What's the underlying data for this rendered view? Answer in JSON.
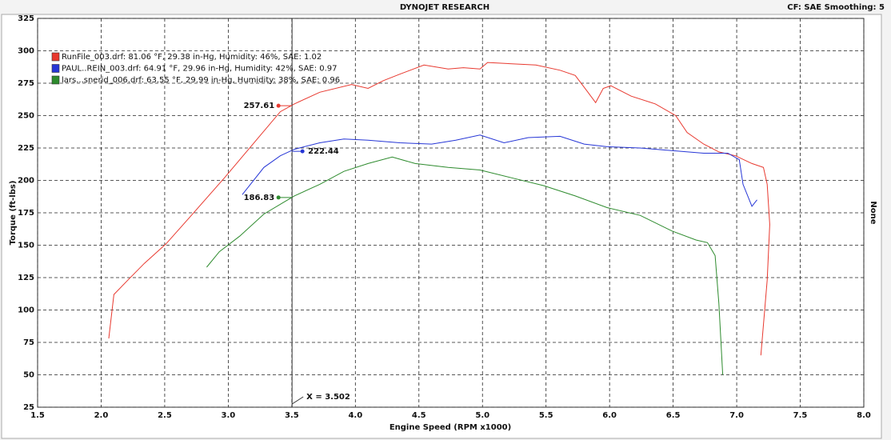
{
  "chart_data": {
    "type": "line",
    "title": "DYNOJET RESEARCH",
    "subtitle": "CF: SAE  Smoothing: 5",
    "side_label": "None",
    "xlabel": "Engine Speed (RPM x1000)",
    "ylabel": "Torque (ft-lbs)",
    "xlim": [
      1.5,
      8.0
    ],
    "ylim": [
      25,
      325
    ],
    "xticks": [
      1.5,
      {
        "value": 2,
        "label": "2.0"
      },
      2.5,
      {
        "value": 3,
        "label": "3.0"
      },
      3.5,
      {
        "value": 4,
        "label": "4.0"
      },
      4.5,
      {
        "value": 5,
        "label": "5.0"
      },
      5.5,
      {
        "value": 6,
        "label": "6.0"
      },
      6.5,
      {
        "value": 7,
        "label": "7.0"
      },
      7.5,
      {
        "value": 8,
        "label": "8.0"
      }
    ],
    "yticks": [
      25,
      50,
      75,
      100,
      125,
      150,
      175,
      200,
      225,
      250,
      275,
      300,
      325
    ],
    "grid": true,
    "legend": "upper left",
    "cursor": {
      "value": 3.502,
      "label": "X = 3.502"
    },
    "series": [
      {
        "name": "RunFile_003.drf: 81.06 °F, 29.38 in-Hg, Humidity: 46%, SAE: 1.02",
        "color": "#e8392f",
        "cursor_value": 257.61,
        "x": [
          2.06,
          2.1,
          2.21,
          2.34,
          2.51,
          2.71,
          2.97,
          3.22,
          3.41,
          3.52,
          3.72,
          3.97,
          4.1,
          4.22,
          4.35,
          4.54,
          4.73,
          4.85,
          4.98,
          5.04,
          5.23,
          5.42,
          5.61,
          5.73,
          5.83,
          5.89,
          5.95,
          6.01,
          6.17,
          6.36,
          6.52,
          6.61,
          6.74,
          6.86,
          6.99,
          7.12,
          7.21,
          7.24,
          7.26,
          7.24,
          7.19
        ],
        "values": [
          78,
          112,
          123,
          136,
          151,
          173,
          202,
          231,
          253,
          259,
          268,
          274,
          271,
          277,
          282,
          289,
          286,
          287,
          286,
          291,
          290,
          289,
          285,
          281,
          268,
          260,
          271,
          273,
          265,
          259,
          250,
          237,
          228,
          222,
          219,
          213,
          210,
          197,
          166,
          123,
          65
        ]
      },
      {
        "name": "PAUL..REIN_003.drf: 64.91 °F, 29.96 in-Hg, Humidity: 42%, SAE: 0.97",
        "color": "#2636d6",
        "cursor_value": 222.44,
        "x": [
          3.11,
          3.28,
          3.41,
          3.52,
          3.72,
          3.91,
          4.1,
          4.35,
          4.6,
          4.79,
          4.98,
          5.17,
          5.36,
          5.61,
          5.8,
          5.98,
          6.24,
          6.49,
          6.74,
          6.93,
          7.02,
          7.05,
          7.12,
          7.16
        ],
        "values": [
          189,
          210,
          219,
          224,
          229,
          232,
          231,
          229,
          228,
          231,
          235,
          229,
          233,
          234,
          228,
          226,
          225,
          223,
          221,
          221,
          216,
          197,
          180,
          185
        ]
      },
      {
        "name": "lars...snerid_006.drf: 63.55 °F, 29.99 in-Hg, Humidity: 38%, SAE: 0.96",
        "color": "#2e8b2e",
        "cursor_value": 186.83,
        "x": [
          2.83,
          2.93,
          3.09,
          3.28,
          3.52,
          3.72,
          3.91,
          4.1,
          4.29,
          4.47,
          4.73,
          4.98,
          5.23,
          5.48,
          5.73,
          5.98,
          6.24,
          6.49,
          6.68,
          6.77,
          6.83,
          6.86,
          6.89
        ],
        "values": [
          133,
          145,
          157,
          174,
          188,
          197,
          207,
          213,
          218,
          213,
          210,
          208,
          202,
          196,
          188,
          179,
          173,
          161,
          154,
          152,
          142,
          105,
          50
        ]
      }
    ]
  }
}
